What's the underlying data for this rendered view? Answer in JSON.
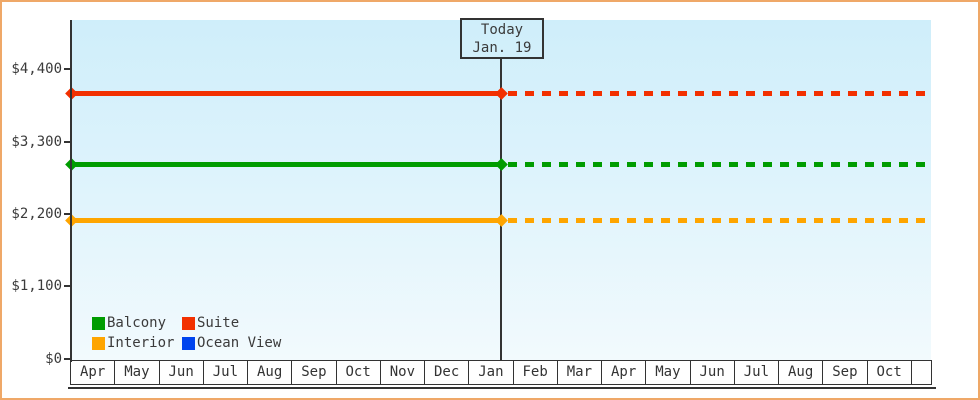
{
  "chart_data": {
    "type": "line",
    "title": "",
    "today": {
      "label": "Today",
      "date": "Jan. 19"
    },
    "x_months": [
      "Apr",
      "May",
      "Jun",
      "Jul",
      "Aug",
      "Sep",
      "Oct",
      "Nov",
      "Dec",
      "Jan",
      "Feb",
      "Mar",
      "Apr",
      "May",
      "Jun",
      "Jul",
      "Aug",
      "Sep",
      "Oct"
    ],
    "y_ticks": [
      {
        "label": "$4,400",
        "value": 4400
      },
      {
        "label": "$3,300",
        "value": 3300
      },
      {
        "label": "$2,200",
        "value": 2200
      },
      {
        "label": "$1,100",
        "value": 1100
      },
      {
        "label": "$0",
        "value": 0
      }
    ],
    "ylim": [
      0,
      5150
    ],
    "grid": false,
    "legend_position": "bottom-left",
    "line_style": {
      "before_today": "solid",
      "after_today": "dashed"
    },
    "series": [
      {
        "name": "Balcony",
        "color": "#009c00",
        "value": 2945,
        "visible": true
      },
      {
        "name": "Suite",
        "color": "#f23000",
        "value": 4035,
        "visible": true
      },
      {
        "name": "Interior",
        "color": "#fea500",
        "value": 2105,
        "visible": true
      },
      {
        "name": "Ocean View",
        "color": "#0044ee",
        "value": null,
        "visible": false
      }
    ]
  },
  "colors": {
    "frame_border": "#efa868",
    "plot_top": "#cfeefa",
    "plot_bottom": "#f2fafd",
    "axis": "#333333",
    "text": "#3b3b3b"
  }
}
